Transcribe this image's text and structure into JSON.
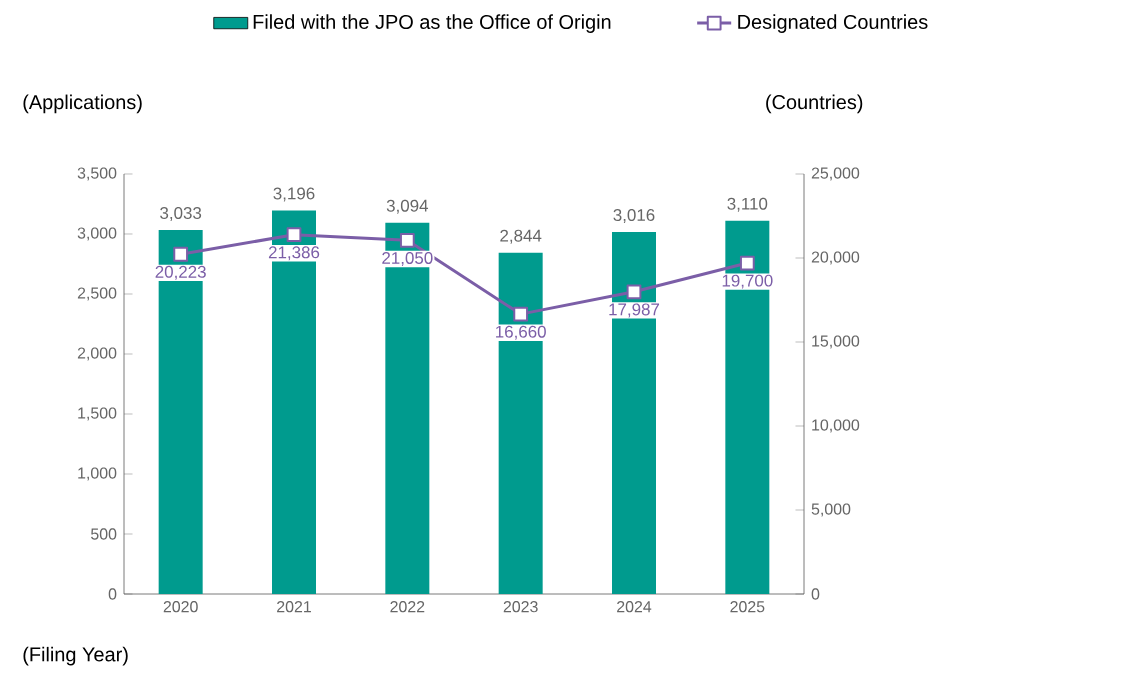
{
  "chart_data": {
    "type": "bar",
    "xlabel": "(Filing Year)",
    "ylabel": "(Applications)",
    "y2label": "(Countries)",
    "categories": [
      "2020",
      "2021",
      "2022",
      "2023",
      "2024",
      "2025"
    ],
    "series": [
      {
        "name": "Filed with the JPO as the Office of Origin",
        "color": "#009b8e",
        "values": [
          3033,
          3196,
          3094,
          2844,
          3016,
          3110
        ],
        "value_labels": [
          "3,033",
          "3,196",
          "3,094",
          "2,844",
          "3,016",
          "3,110"
        ]
      },
      {
        "name": "Designated Countries",
        "type": "line",
        "axis": "y2",
        "color": "#7b5ea7",
        "marker": "square",
        "values": [
          20223,
          21386,
          21050,
          16660,
          17987,
          19700
        ],
        "value_labels": [
          "20,223",
          "21,386",
          "21,050",
          "16,660",
          "17,987",
          "19,700"
        ]
      }
    ],
    "ylim": [
      0,
      3500
    ],
    "yticks": [
      0,
      {
        "value": 500,
        "label": "500"
      },
      {
        "value": 1000,
        "label": "1,000"
      },
      {
        "value": 1500,
        "label": "1,500"
      },
      {
        "value": 2000,
        "label": "2,000"
      },
      {
        "value": 2500,
        "label": "2,500"
      },
      {
        "value": 3000,
        "label": "3,000"
      },
      {
        "value": 3500,
        "label": "3,500"
      }
    ],
    "y2lim": [
      0,
      25000
    ],
    "y2ticks": [
      0,
      {
        "value": 5000,
        "label": "5,000"
      },
      {
        "value": 10000,
        "label": "10,000"
      },
      {
        "value": 15000,
        "label": "15,000"
      },
      {
        "value": 20000,
        "label": "20,000"
      },
      {
        "value": 25000,
        "label": "25,000"
      }
    ],
    "legend": "top",
    "grid": false
  }
}
